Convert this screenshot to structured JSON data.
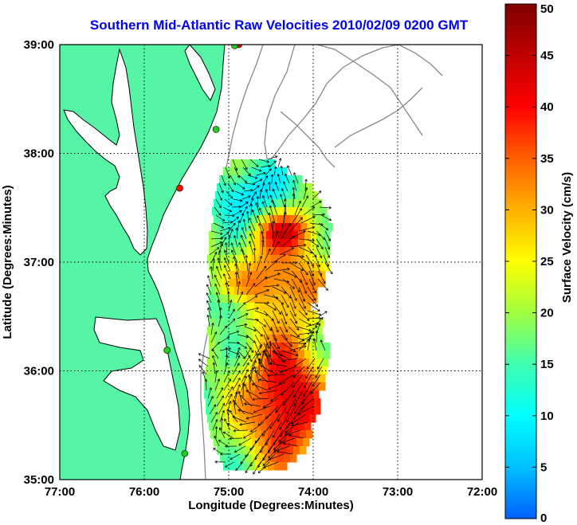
{
  "title": "Southern Mid-Atlantic Raw Velocities 2010/02/09 0200 GMT",
  "map": {
    "xlabel": "Longitude (Degrees:Minutes)",
    "ylabel": "Latitude (Degrees:Minutes)",
    "lon_ticks": [
      "77:00",
      "76:00",
      "75:00",
      "74:00",
      "73:00",
      "72:00"
    ],
    "lat_ticks": [
      "39:00",
      "38:00",
      "37:00",
      "36:00",
      "35:00"
    ],
    "lon_range": [
      -77,
      -72
    ],
    "lat_range": [
      35,
      39
    ],
    "grid": "dotted",
    "land_color": "#55f5a5",
    "coast_color": "#000000",
    "bathymetry_color": "#888888",
    "vector_color": "#000000",
    "stations": [
      {
        "lon": -74.88,
        "lat": 39.0,
        "color": "#ee1100"
      },
      {
        "lon": -74.93,
        "lat": 38.99,
        "color": "#22cc22"
      },
      {
        "lon": -75.15,
        "lat": 38.22,
        "color": "#22cc22"
      },
      {
        "lon": -75.58,
        "lat": 37.68,
        "color": "#ee1100"
      },
      {
        "lon": -75.73,
        "lat": 36.19,
        "color": "#22cc22"
      },
      {
        "lon": -75.52,
        "lat": 35.24,
        "color": "#22cc22"
      }
    ]
  },
  "colorbar": {
    "label": "Surface Velocity (cm/s)",
    "ticks": [
      "0",
      "5",
      "10",
      "15",
      "20",
      "25",
      "30",
      "35",
      "40",
      "45",
      "50"
    ],
    "range": [
      0,
      50
    ],
    "colors": [
      "#0060ff",
      "#00c0ff",
      "#00ffff",
      "#40ffb0",
      "#a0ff40",
      "#ffff00",
      "#ffb000",
      "#ff6000",
      "#ff0000",
      "#c00000",
      "#800000"
    ]
  }
}
